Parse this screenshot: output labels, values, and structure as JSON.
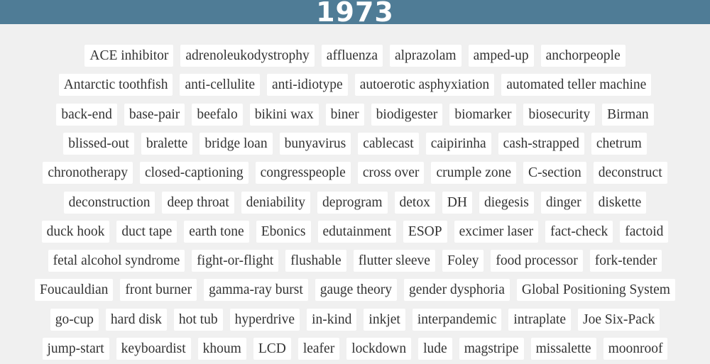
{
  "header": {
    "year": "1973"
  },
  "rows": [
    [
      "ACE inhibitor",
      "adrenoleukodystrophy",
      "affluenza",
      "alprazolam",
      "amped-up",
      "anchorpeople"
    ],
    [
      "Antarctic toothfish",
      "anti-cellulite",
      "anti-idiotype",
      "autoerotic asphyxiation",
      "automated teller machine"
    ],
    [
      "back-end",
      "base-pair",
      "beefalo",
      "bikini wax",
      "biner",
      "biodigester",
      "biomarker",
      "biosecurity",
      "Birman"
    ],
    [
      "blissed-out",
      "bralette",
      "bridge loan",
      "bunyavirus",
      "cablecast",
      "caipirinha",
      "cash-strapped",
      "chetrum"
    ],
    [
      "chronotherapy",
      "closed-captioning",
      "congresspeople",
      "cross over",
      "crumple zone",
      "C-section",
      "deconstruct"
    ],
    [
      "deconstruction",
      "deep throat",
      "deniability",
      "deprogram",
      "detox",
      "DH",
      "diegesis",
      "dinger",
      "diskette"
    ],
    [
      "duck hook",
      "duct tape",
      "earth tone",
      "Ebonics",
      "edutainment",
      "ESOP",
      "excimer laser",
      "fact-check",
      "factoid"
    ],
    [
      "fetal alcohol syndrome",
      "fight-or-flight",
      "flushable",
      "flutter sleeve",
      "Foley",
      "food processor",
      "fork-tender"
    ],
    [
      "Foucauldian",
      "front burner",
      "gamma-ray burst",
      "gauge theory",
      "gender dysphoria",
      "Global Positioning System"
    ],
    [
      "go-cup",
      "hard disk",
      "hot tub",
      "hyperdrive",
      "in-kind",
      "inkjet",
      "interpandemic",
      "intraplate",
      "Joe Six-Pack"
    ],
    [
      "jump-start",
      "keyboardist",
      "khoum",
      "LCD",
      "leafer",
      "lockdown",
      "lude",
      "magstripe",
      "missalette",
      "moonroof"
    ]
  ]
}
